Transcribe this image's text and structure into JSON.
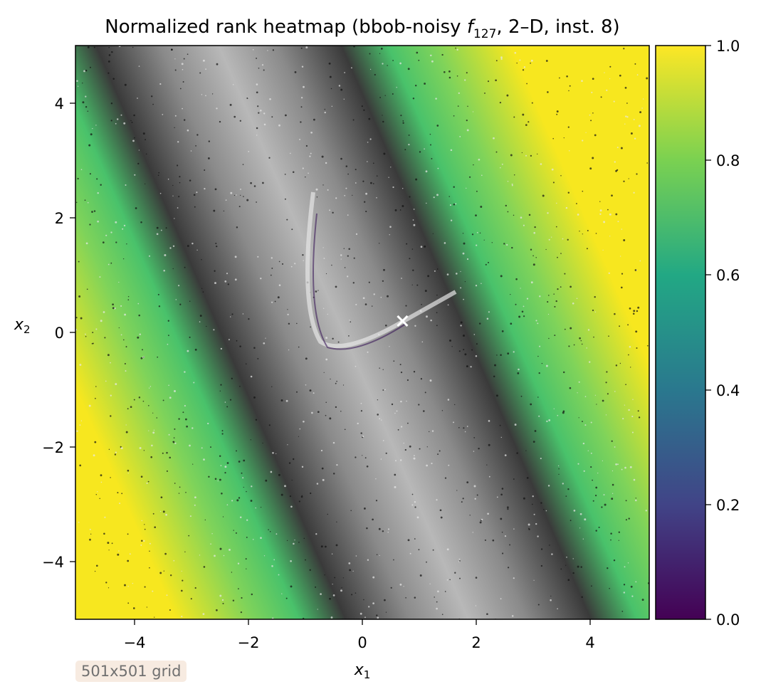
{
  "chart_data": {
    "type": "heatmap",
    "title_prefix": "Normalized rank heatmap (bbob-noisy ",
    "title_func": "f",
    "title_func_sub": "127",
    "title_suffix": ", 2–D, inst. 8)",
    "xlabel": "x",
    "xlabel_sub": "1",
    "ylabel": "x",
    "ylabel_sub": "2",
    "xlim": [
      -5,
      5
    ],
    "ylim": [
      -5,
      5
    ],
    "x_ticks": [
      -4,
      -2,
      0,
      2,
      4
    ],
    "x_tick_labels": [
      "−4",
      "−2",
      "0",
      "2",
      "4"
    ],
    "y_ticks": [
      -4,
      -2,
      0,
      2,
      4
    ],
    "y_tick_labels": [
      "−4",
      "−2",
      "0",
      "2",
      "4"
    ],
    "colorbar": {
      "range": [
        0,
        1
      ],
      "ticks": [
        0.0,
        0.2,
        0.4,
        0.6,
        0.8,
        1.0
      ],
      "tick_labels": [
        "0.0",
        "0.2",
        "0.4",
        "0.6",
        "0.8",
        "1.0"
      ],
      "colormap": "viridis"
    },
    "colormap_stops": [
      "#440154",
      "#414487",
      "#2a788e",
      "#22a884",
      "#7ad151",
      "#fde725"
    ],
    "band_color": "#5a5a5a",
    "optimum": {
      "x": 0.7,
      "y": 0.2,
      "marker": "x",
      "color": "#ffffff"
    },
    "grid": false,
    "legend": "none"
  },
  "annotation": {
    "text": "501x501 grid"
  }
}
